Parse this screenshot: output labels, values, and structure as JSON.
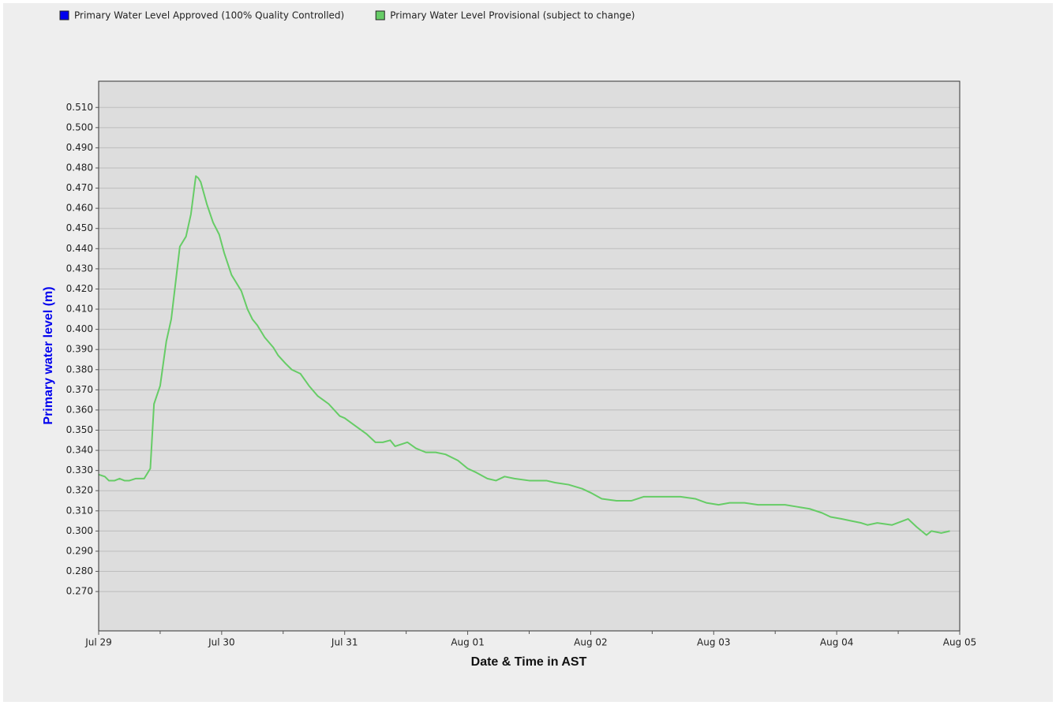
{
  "chart_data": {
    "type": "line",
    "ylabel": "Primary water level (m)",
    "xlabel": "Date & Time in AST",
    "xlim": [
      0,
      7
    ],
    "xticks": [
      {
        "value": 0,
        "label": "Jul 29"
      },
      {
        "value": 1,
        "label": "Jul 30"
      },
      {
        "value": 2,
        "label": "Jul 31"
      },
      {
        "value": 3,
        "label": "Aug 01"
      },
      {
        "value": 4,
        "label": "Aug 02"
      },
      {
        "value": 5,
        "label": "Aug 03"
      },
      {
        "value": 6,
        "label": "Aug 04"
      },
      {
        "value": 7,
        "label": "Aug 05"
      }
    ],
    "xminorticks": [
      0.5,
      1.5,
      2.5,
      3.5,
      4.5,
      5.5,
      6.5
    ],
    "ylim": [
      0.2505,
      0.523
    ],
    "yticks": [
      {
        "value": 0.27,
        "label": "0.270"
      },
      {
        "value": 0.28,
        "label": "0.280"
      },
      {
        "value": 0.29,
        "label": "0.290"
      },
      {
        "value": 0.3,
        "label": "0.300"
      },
      {
        "value": 0.31,
        "label": "0.310"
      },
      {
        "value": 0.32,
        "label": "0.320"
      },
      {
        "value": 0.33,
        "label": "0.330"
      },
      {
        "value": 0.34,
        "label": "0.340"
      },
      {
        "value": 0.35,
        "label": "0.350"
      },
      {
        "value": 0.36,
        "label": "0.360"
      },
      {
        "value": 0.37,
        "label": "0.370"
      },
      {
        "value": 0.38,
        "label": "0.380"
      },
      {
        "value": 0.39,
        "label": "0.390"
      },
      {
        "value": 0.4,
        "label": "0.400"
      },
      {
        "value": 0.41,
        "label": "0.410"
      },
      {
        "value": 0.42,
        "label": "0.420"
      },
      {
        "value": 0.43,
        "label": "0.430"
      },
      {
        "value": 0.44,
        "label": "0.440"
      },
      {
        "value": 0.45,
        "label": "0.450"
      },
      {
        "value": 0.46,
        "label": "0.460"
      },
      {
        "value": 0.47,
        "label": "0.470"
      },
      {
        "value": 0.48,
        "label": "0.480"
      },
      {
        "value": 0.49,
        "label": "0.490"
      },
      {
        "value": 0.5,
        "label": "0.500"
      },
      {
        "value": 0.51,
        "label": "0.510"
      }
    ],
    "grid": true,
    "legend": "top-left",
    "x": [
      0,
      0.05,
      0.083,
      0.13,
      0.17,
      0.21,
      0.25,
      0.3,
      0.37,
      0.42,
      0.45,
      0.5,
      0.55,
      0.59,
      0.66,
      0.71,
      0.75,
      0.79,
      0.81,
      0.83,
      0.88,
      0.93,
      0.98,
      1.02,
      1.08,
      1.16,
      1.21,
      1.25,
      1.29,
      1.35,
      1.42,
      1.46,
      1.52,
      1.57,
      1.64,
      1.71,
      1.78,
      1.87,
      1.96,
      2.0,
      2.09,
      2.18,
      2.25,
      2.31,
      2.37,
      2.41,
      2.51,
      2.58,
      2.66,
      2.74,
      2.82,
      2.92,
      3.0,
      3.07,
      3.16,
      3.23,
      3.3,
      3.38,
      3.5,
      3.64,
      3.71,
      3.82,
      3.93,
      4.0,
      4.09,
      4.21,
      4.33,
      4.43,
      4.52,
      4.62,
      4.73,
      4.85,
      4.94,
      5.04,
      5.13,
      5.25,
      5.36,
      5.42,
      5.58,
      5.68,
      5.78,
      5.88,
      5.95,
      6.04,
      6.12,
      6.2,
      6.25,
      6.33,
      6.45,
      6.58,
      6.65,
      6.73,
      6.77,
      6.85,
      6.92
    ],
    "series": [
      {
        "name": "Primary Water Level Approved (100% Quality Controlled)",
        "color": "#0000ee",
        "values": [
          null,
          null,
          null,
          null,
          null,
          null,
          null,
          null,
          null,
          null,
          null,
          null,
          null,
          null,
          null,
          null,
          null,
          null,
          null,
          null,
          null,
          null,
          null,
          null,
          null,
          null,
          null,
          null,
          null,
          null,
          null,
          null,
          null,
          null,
          null,
          null,
          null,
          null,
          null,
          null,
          null,
          null,
          null,
          null,
          null,
          null,
          null,
          null,
          null,
          null,
          null,
          null,
          null,
          null,
          null,
          null,
          null,
          null,
          null,
          null,
          null,
          null,
          null,
          null,
          null,
          null,
          null,
          null,
          null,
          null,
          null,
          null,
          null,
          null,
          null,
          null,
          null,
          null,
          null,
          null,
          null,
          null,
          null,
          null,
          null,
          null,
          null,
          null,
          null,
          null,
          null,
          null,
          null,
          null,
          null
        ]
      },
      {
        "name": "Primary Water Level Provisional (subject to change)",
        "color": "#66cc66",
        "values": [
          0.328,
          0.327,
          0.325,
          0.325,
          0.326,
          0.325,
          0.325,
          0.326,
          0.326,
          0.331,
          0.363,
          0.372,
          0.394,
          0.405,
          0.441,
          0.446,
          0.457,
          0.476,
          0.475,
          0.473,
          0.462,
          0.453,
          0.447,
          0.438,
          0.427,
          0.419,
          0.41,
          0.405,
          0.402,
          0.396,
          0.391,
          0.387,
          0.383,
          0.38,
          0.378,
          0.372,
          0.367,
          0.363,
          0.357,
          0.356,
          0.352,
          0.348,
          0.344,
          0.344,
          0.345,
          0.342,
          0.344,
          0.341,
          0.339,
          0.339,
          0.338,
          0.335,
          0.331,
          0.329,
          0.326,
          0.325,
          0.327,
          0.326,
          0.325,
          0.325,
          0.324,
          0.323,
          0.321,
          0.319,
          0.316,
          0.315,
          0.315,
          0.317,
          0.317,
          0.317,
          0.317,
          0.316,
          0.314,
          0.313,
          0.314,
          0.314,
          0.313,
          0.313,
          0.313,
          0.312,
          0.311,
          0.309,
          0.307,
          0.306,
          0.305,
          0.304,
          0.303,
          0.304,
          0.303,
          0.306,
          0.302,
          0.298,
          0.3,
          0.299,
          0.3
        ]
      }
    ]
  }
}
